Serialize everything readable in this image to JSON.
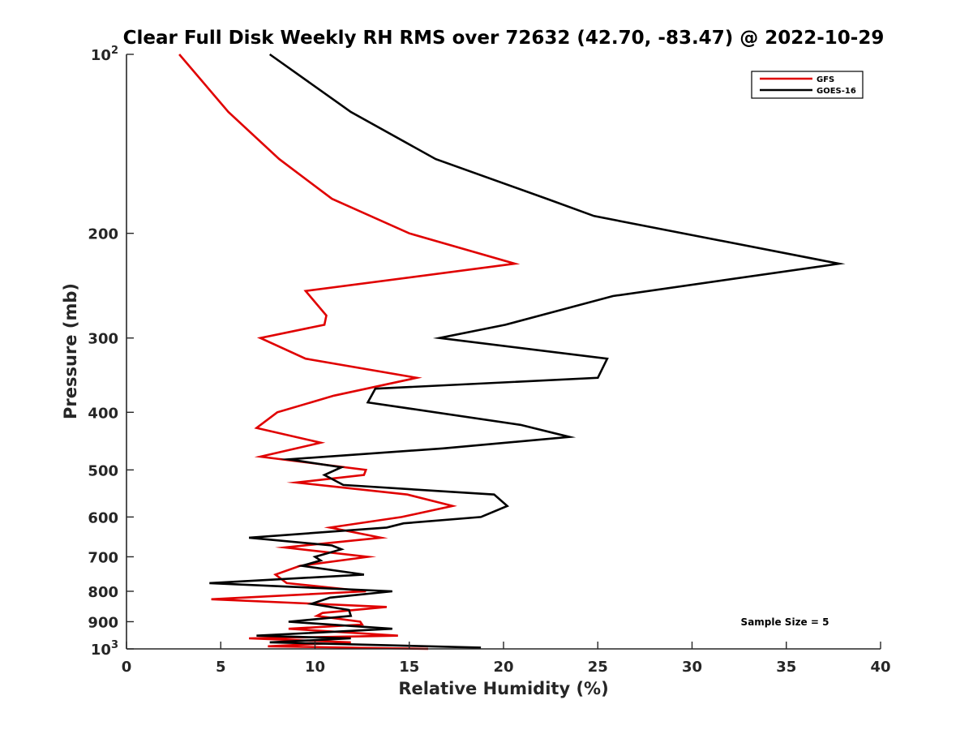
{
  "chart_data": {
    "type": "line",
    "title": "Clear Full Disk Weekly RH RMS over 72632 (42.70, -83.47) @ 2022-10-29",
    "xlabel": "Relative Humidity (%)",
    "ylabel": "Pressure (mb)",
    "xlim": [
      0,
      40
    ],
    "ylim": [
      100,
      1000
    ],
    "y_scale": "log",
    "y_reversed": true,
    "x_ticks": [
      "0",
      "5",
      "10",
      "15",
      "20",
      "25",
      "30",
      "35",
      "40"
    ],
    "x_tick_values": [
      0,
      5,
      10,
      15,
      20,
      25,
      30,
      35,
      40
    ],
    "y_tick_values": [
      100,
      200,
      300,
      400,
      500,
      600,
      700,
      800,
      900,
      1000
    ],
    "y_tick_labels": [
      {
        "base": "10",
        "exp": "2"
      },
      {
        "base": "200",
        "exp": ""
      },
      {
        "base": "300",
        "exp": ""
      },
      {
        "base": "400",
        "exp": ""
      },
      {
        "base": "500",
        "exp": ""
      },
      {
        "base": "600",
        "exp": ""
      },
      {
        "base": "700",
        "exp": ""
      },
      {
        "base": "800",
        "exp": ""
      },
      {
        "base": "900",
        "exp": ""
      },
      {
        "base": "10",
        "exp": "3"
      }
    ],
    "grid": false,
    "legend": "top-right",
    "annotation": "Sample Size = 5",
    "series": [
      {
        "name": "GFS",
        "color": "#e00000",
        "x": [
          2.8,
          5.4,
          8.1,
          10.9,
          15.0,
          20.6,
          9.5,
          10.6,
          10.5,
          7.1,
          9.5,
          15.4,
          11.0,
          8.0,
          6.9,
          10.3,
          7.1,
          12.7,
          12.6,
          9.0,
          14.9,
          17.3,
          14.6,
          10.8,
          13.5,
          8.4,
          12.8,
          9.2,
          7.9,
          8.5,
          12.7,
          4.5,
          13.8,
          10.4,
          10.1,
          12.4,
          12.5,
          8.6,
          14.4,
          6.5,
          11.9,
          7.5,
          16.0
        ],
        "y": [
          100,
          125,
          150,
          175,
          200,
          225,
          250,
          275,
          285,
          300,
          325,
          350,
          375,
          400,
          425,
          450,
          475,
          500,
          510,
          525,
          550,
          575,
          600,
          625,
          650,
          675,
          700,
          725,
          750,
          775,
          800,
          825,
          850,
          870,
          880,
          900,
          910,
          925,
          950,
          960,
          975,
          990,
          1000
        ]
      },
      {
        "name": "GOES-16",
        "color": "#000000",
        "x": [
          7.6,
          11.9,
          16.4,
          22.3,
          24.8,
          37.8,
          25.8,
          20.1,
          16.6,
          25.5,
          25.0,
          13.2,
          12.8,
          20.9,
          23.5,
          16.8,
          8.6,
          11.4,
          10.5,
          11.5,
          19.5,
          20.2,
          18.8,
          14.7,
          13.8,
          6.5,
          10.9,
          11.4,
          10.0,
          10.3,
          9.3,
          12.6,
          4.4,
          14.1,
          10.8,
          9.8,
          11.8,
          11.9,
          8.6,
          14.1,
          6.9,
          11.9,
          7.6,
          18.8
        ],
        "y": [
          100,
          125,
          150,
          175,
          187,
          225,
          255,
          285,
          300,
          325,
          350,
          365,
          385,
          420,
          440,
          460,
          480,
          495,
          510,
          530,
          550,
          575,
          600,
          615,
          625,
          650,
          670,
          680,
          700,
          710,
          725,
          750,
          775,
          800,
          820,
          840,
          860,
          880,
          900,
          925,
          950,
          960,
          975,
          995
        ]
      }
    ]
  }
}
